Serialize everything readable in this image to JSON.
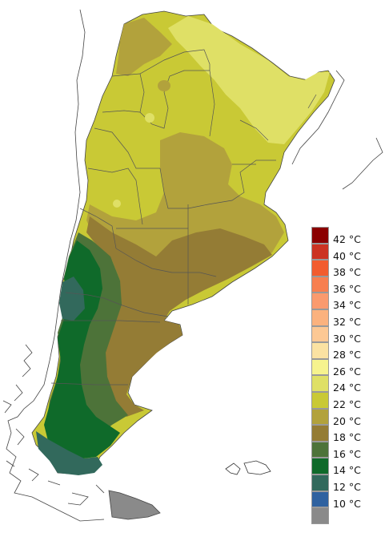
{
  "legend": {
    "entries": [
      {
        "label": "42 °C",
        "color": "#8b0000"
      },
      {
        "label": "40 °C",
        "color": "#cc3322"
      },
      {
        "label": "38 °C",
        "color": "#f25c2e"
      },
      {
        "label": "36 °C",
        "color": "#f77f50"
      },
      {
        "label": "34 °C",
        "color": "#fa9a6e"
      },
      {
        "label": "32 °C",
        "color": "#fbb27e"
      },
      {
        "label": "30 °C",
        "color": "#fcc894"
      },
      {
        "label": "28 °C",
        "color": "#fbe2a2"
      },
      {
        "label": "26 °C",
        "color": "#f6f38e"
      },
      {
        "label": "24 °C",
        "color": "#dfe066"
      },
      {
        "label": "22 °C",
        "color": "#c9c935"
      },
      {
        "label": "20 °C",
        "color": "#b2a23c"
      },
      {
        "label": "18 °C",
        "color": "#947c35"
      },
      {
        "label": "16 °C",
        "color": "#4d7339"
      },
      {
        "label": "14 °C",
        "color": "#0f6a2a"
      },
      {
        "label": "12 °C",
        "color": "#32695c"
      },
      {
        "label": "10 °C",
        "color": "#2f62a0"
      }
    ],
    "bottom_color": "#8a8a8a"
  }
}
